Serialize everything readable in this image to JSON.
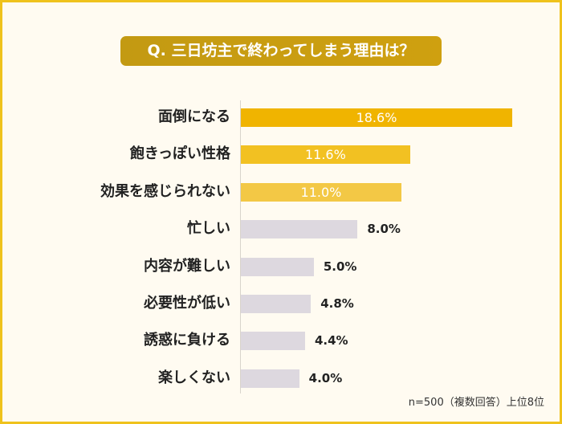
{
  "chart_data": {
    "type": "bar",
    "orientation": "horizontal",
    "title": "Q. 三日坊主で終わってしまう理由は？",
    "categories": [
      "面倒になる",
      "飽きっぽい性格",
      "効果を感じられない",
      "忙しい",
      "内容が難しい",
      "必要性が低い",
      "誘惑に負ける",
      "楽しくない"
    ],
    "values": [
      18.6,
      11.6,
      11.0,
      8.0,
      5.0,
      4.8,
      4.4,
      4.0
    ],
    "value_labels": [
      "18.6%",
      "11.6%",
      "11.0%",
      "8.0%",
      "5.0%",
      "4.8%",
      "4.4%",
      "4.0%"
    ],
    "unit": "%",
    "xlim": [
      0,
      20
    ],
    "grid": false,
    "note": "n=500（複数回答）上位8位"
  },
  "colors": {
    "highlight": [
      "#f0b400",
      "#f2c122",
      "#f3c845"
    ],
    "other": "#ddd8df",
    "title_bg": "#c99d11",
    "frame": "#efc21c"
  }
}
